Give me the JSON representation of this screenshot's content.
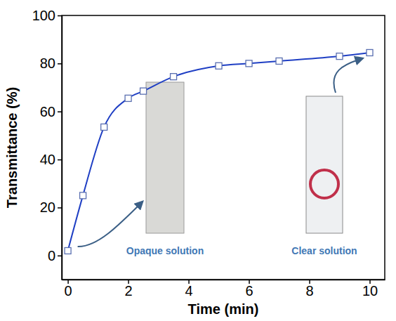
{
  "chart_data": {
    "type": "line",
    "x_label": "Time (min)",
    "y_label": "Transmittance (%)",
    "x": [
      0,
      0.5,
      1.2,
      2,
      2.5,
      3.5,
      5,
      6,
      7,
      9,
      10
    ],
    "values": [
      2,
      25,
      53.5,
      65.5,
      68.5,
      74.5,
      79,
      80,
      81,
      83,
      84.5
    ],
    "color": "#1f3fc4",
    "marker": "square",
    "line_style": "solid",
    "xlim": [
      -0.2,
      10.5
    ],
    "xticks": [
      0,
      2,
      4,
      6,
      8,
      10
    ],
    "ylim": [
      -10,
      100
    ],
    "yticks": [
      0,
      20,
      40,
      60,
      80,
      100
    ],
    "grid": false,
    "annotations": [
      "Opaque solution",
      "Clear solution"
    ]
  }
}
